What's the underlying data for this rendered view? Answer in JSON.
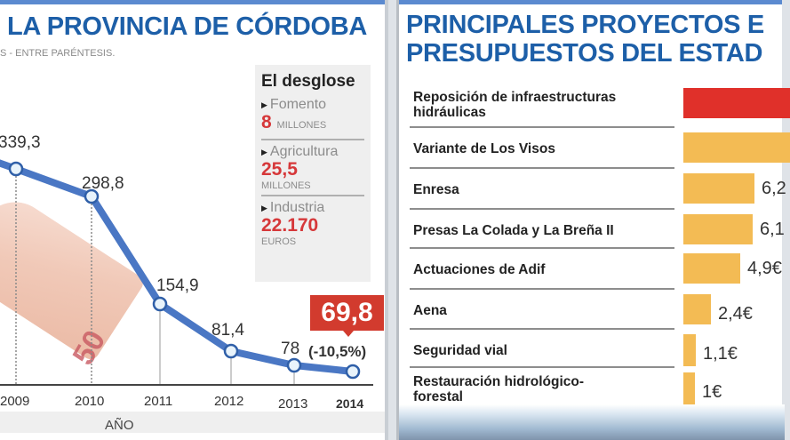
{
  "left_panel": {
    "title": "LA PROVINCIA DE CÓRDOBA",
    "subtitle": "S - ENTRE PARÉNTESIS.",
    "axis_title": "AÑO",
    "highlight": {
      "value": "69,8",
      "change": "(-10,5%)"
    },
    "breakdown": {
      "title": "El desglose",
      "items": [
        {
          "label": "Fomento",
          "value": "8",
          "unit": "MILLONES"
        },
        {
          "label": "Agricultura",
          "value": "25,5",
          "unit": "MILLONES"
        },
        {
          "label": "Industria",
          "value": "22.170",
          "unit": "EUROS"
        }
      ]
    },
    "colors": {
      "title": "#1d5fa8",
      "line": "#4a77c4",
      "highlight": "#d23b2e",
      "value": "#d6383a"
    }
  },
  "right_panel": {
    "title_line1": "PRINCIPALES PROYECTOS E",
    "title_line2": "PRESUPUESTOS DEL ESTAD",
    "colors": {
      "top": "#e0302a",
      "bar": "#f3bb54"
    }
  },
  "chart_data": [
    {
      "type": "line",
      "title": "LA PROVINCIA DE CÓRDOBA",
      "xlabel": "AÑO",
      "ylabel": "",
      "categories": [
        "2009",
        "2010",
        "2011",
        "2012",
        "2013",
        "2014"
      ],
      "values": [
        339.3,
        298.8,
        154.9,
        81.4,
        78,
        69.8
      ],
      "value_labels": [
        "339,3",
        "298,8",
        "154,9",
        "81,4",
        "78",
        "69,8"
      ],
      "annotations": [
        {
          "x": "2014",
          "text": "(-10,5%)"
        }
      ],
      "grid": false
    },
    {
      "type": "bar",
      "orientation": "horizontal",
      "title": "PRINCIPALES PROYECTOS E... PRESUPUESTOS DEL ESTAD...",
      "categories": [
        "Reposición de infraestructuras hidráulicas",
        "Variante de Los Visos",
        "Enresa",
        "Presas La Colada y La Breña II",
        "Actuaciones de Adif",
        "Aena",
        "Seguridad vial",
        "Restauración hidrológico-forestal"
      ],
      "values": [
        null,
        null,
        6.2,
        6.1,
        4.9,
        2.4,
        1.1,
        1
      ],
      "value_labels": [
        "",
        "",
        "6,2",
        "6,1",
        "4,9€",
        "2,4€",
        "1,1€",
        "1€"
      ]
    }
  ],
  "bars": [
    {
      "label_1": "Reposición de infraestructuras",
      "label_2": "hidráulicas",
      "value": "",
      "width": 120,
      "color": "#e0302a"
    },
    {
      "label_1": "Variante de Los Visos",
      "label_2": "",
      "value": "",
      "width": 120,
      "color": "#f3bb54"
    },
    {
      "label_1": "Enresa",
      "label_2": "",
      "value": "6,2",
      "width": 80,
      "color": "#f3bb54"
    },
    {
      "label_1": "Presas La Colada y La Breña II",
      "label_2": "",
      "value": "6,1",
      "width": 78,
      "color": "#f3bb54"
    },
    {
      "label_1": "Actuaciones de Adif",
      "label_2": "",
      "value": "4,9€",
      "width": 64,
      "color": "#f3bb54"
    },
    {
      "label_1": "Aena",
      "label_2": "",
      "value": "2,4€",
      "width": 31,
      "color": "#f3bb54"
    },
    {
      "label_1": "Seguridad vial",
      "label_2": "",
      "value": "1,1€",
      "width": 14,
      "color": "#f3bb54"
    },
    {
      "label_1": "Restauración hidrológico-",
      "label_2": "forestal",
      "value": "1€",
      "width": 13,
      "color": "#f3bb54"
    }
  ]
}
